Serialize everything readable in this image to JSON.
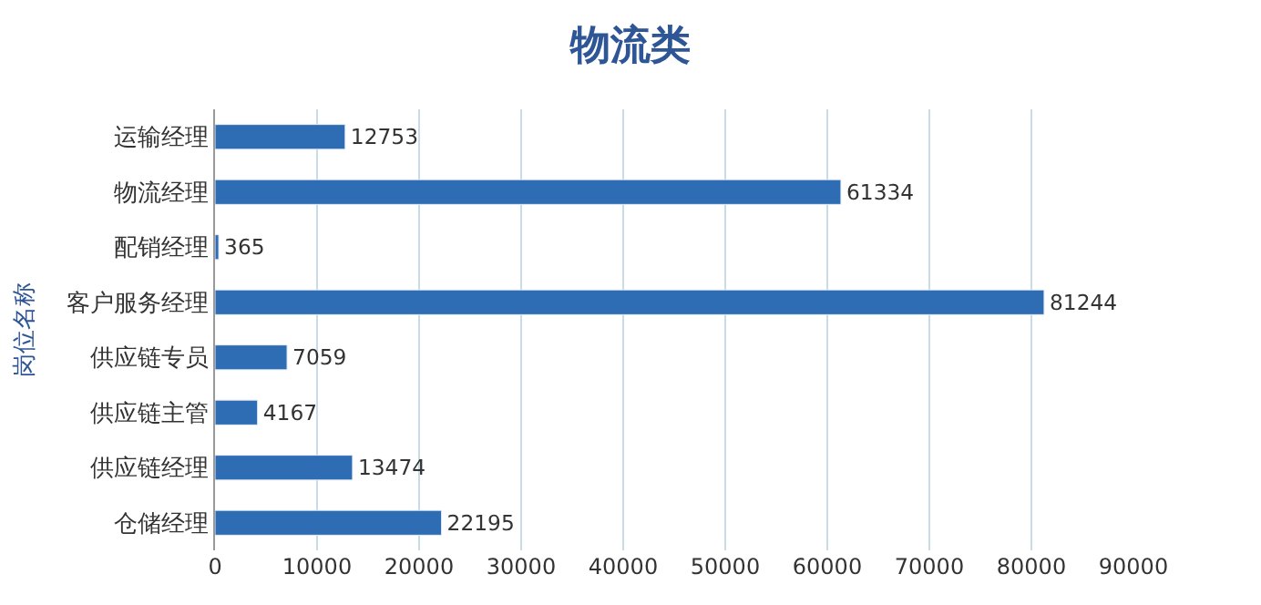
{
  "chart_data": {
    "type": "bar",
    "orientation": "horizontal",
    "title": "物流类",
    "ylabel": "岗位名称",
    "categories": [
      "运输经理",
      "物流经理",
      "配销经理",
      "客户服务经理",
      "供应链专员",
      "供应链主管",
      "供应链经理",
      "仓储经理"
    ],
    "values": [
      12753,
      61334,
      365,
      81244,
      7059,
      4167,
      13474,
      22195
    ],
    "color": "#2e6db4",
    "data_labels": true,
    "grid": "x",
    "xlim": [
      0,
      90000
    ],
    "xticks": [
      0,
      10000,
      20000,
      30000,
      40000,
      50000,
      60000,
      70000,
      80000,
      90000
    ]
  }
}
